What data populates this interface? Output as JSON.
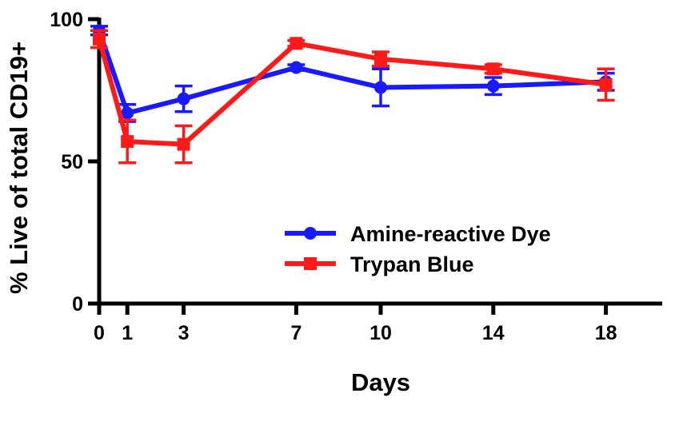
{
  "chart_data": {
    "type": "line",
    "xlabel": "Days",
    "ylabel": "% Live of total CD19+",
    "x_ticks": [
      "0",
      "1",
      "3",
      "7",
      "10",
      "14",
      "18"
    ],
    "y_ticks": [
      "0",
      "50",
      "100"
    ],
    "xlim": [
      0,
      20
    ],
    "ylim": [
      0,
      100
    ],
    "grid": false,
    "legend_position": "right",
    "series": [
      {
        "name": "Amine-reactive Dye",
        "color": "#1a1aff",
        "marker": "circle",
        "points": [
          {
            "x": 0,
            "y": 96,
            "err": 1.5
          },
          {
            "x": 1,
            "y": 67,
            "err": 3
          },
          {
            "x": 3,
            "y": 72,
            "err": 4.5
          },
          {
            "x": 7,
            "y": 83,
            "err": 1
          },
          {
            "x": 10,
            "y": 76,
            "err": 6.5
          },
          {
            "x": 14,
            "y": 76.5,
            "err": 3
          },
          {
            "x": 18,
            "y": 78,
            "err": 3
          }
        ]
      },
      {
        "name": "Trypan Blue",
        "color": "#ff1a1a",
        "marker": "square",
        "points": [
          {
            "x": 0,
            "y": 93,
            "err": 3
          },
          {
            "x": 1,
            "y": 57,
            "err": 7.5
          },
          {
            "x": 3,
            "y": 56,
            "err": 6.5
          },
          {
            "x": 7,
            "y": 91.5,
            "err": 1
          },
          {
            "x": 10,
            "y": 86,
            "err": 2.5
          },
          {
            "x": 14,
            "y": 82.5,
            "err": 1.5
          },
          {
            "x": 18,
            "y": 77,
            "err": 5.5
          }
        ]
      }
    ]
  }
}
